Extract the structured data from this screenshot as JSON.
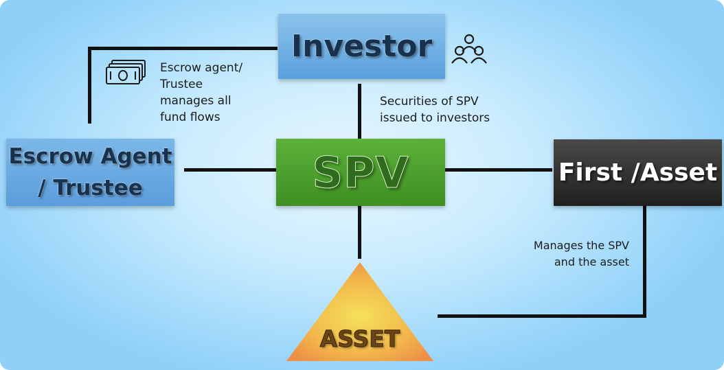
{
  "diagram": {
    "nodes": {
      "investor": {
        "label": "Investor"
      },
      "spv": {
        "label": "SPV"
      },
      "escrow": {
        "line1": "Escrow Agent",
        "line2": "/ Trustee"
      },
      "first_asset": {
        "label": "First /Asset"
      },
      "asset": {
        "label": "ASSET"
      }
    },
    "annotations": {
      "escrow_note": [
        "Escrow agent/",
        "Trustee",
        "manages all",
        "fund flows"
      ],
      "securities_note": [
        "Securities of SPV",
        "issued to investors"
      ],
      "manages_note": [
        "Manages the SPV",
        "and the asset"
      ]
    },
    "icons": {
      "people": "people-group-icon",
      "money": "banknotes-icon"
    },
    "colors": {
      "investor_box": "#6aaee3",
      "spv_box": "#4da12e",
      "escrow_box": "#6aa9e2",
      "first_asset_box": "#2e2e2e",
      "asset_triangle": "#f1a04a",
      "connector": "#111111",
      "background": "#a3dafb"
    }
  }
}
